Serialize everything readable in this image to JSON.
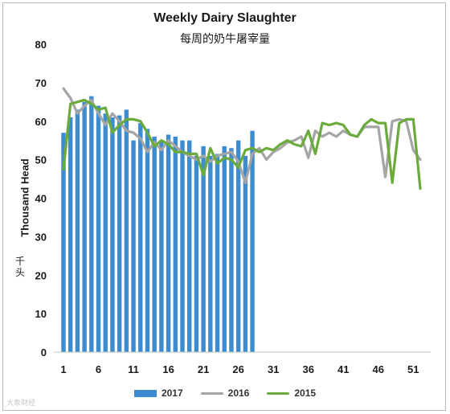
{
  "chart_data": {
    "type": "bar",
    "title": "Weekly Dairy Slaughter",
    "subtitle": "每周的奶牛屠宰量",
    "ylabel": "Thousand Head",
    "ylabel_cn": "千头",
    "xlabel": "",
    "ylim": [
      0,
      80
    ],
    "yticks": [
      "0",
      "10",
      "20",
      "30",
      "40",
      "50",
      "60",
      "70",
      "80"
    ],
    "xlim": [
      1,
      52
    ],
    "xticks": [
      "1",
      "6",
      "11",
      "16",
      "21",
      "26",
      "31",
      "36",
      "41",
      "46",
      "51"
    ],
    "grid": false,
    "legend_position": "bottom",
    "colors": {
      "2017": "#3d8ccf",
      "2016": "#a5a5a5",
      "2015": "#6aab3c"
    },
    "series": [
      {
        "name": "2017",
        "type": "bar",
        "x": [
          1,
          2,
          3,
          4,
          5,
          6,
          7,
          8,
          9,
          10,
          11,
          12,
          13,
          14,
          15,
          16,
          17,
          18,
          19,
          20,
          21,
          22,
          23,
          24,
          25,
          26,
          27,
          28
        ],
        "values": [
          57,
          61,
          63,
          65,
          66.5,
          64,
          62,
          61,
          61.5,
          63,
          55,
          59.5,
          58,
          56,
          55,
          56.5,
          56,
          55,
          55,
          51,
          53.5,
          51,
          51.5,
          53.5,
          53,
          55,
          51,
          57.5
        ]
      },
      {
        "name": "2016",
        "type": "line",
        "x": [
          1,
          2,
          3,
          4,
          5,
          6,
          7,
          8,
          9,
          10,
          11,
          12,
          13,
          14,
          15,
          16,
          17,
          18,
          19,
          20,
          21,
          22,
          23,
          24,
          25,
          26,
          27,
          28,
          29,
          30,
          31,
          32,
          33,
          34,
          35,
          36,
          37,
          38,
          39,
          40,
          41,
          42,
          43,
          44,
          45,
          46,
          47,
          48,
          49,
          50,
          51,
          52
        ],
        "values": [
          68.5,
          66,
          62,
          64,
          65.5,
          62,
          59,
          62,
          60,
          57.5,
          57,
          55.5,
          52,
          54.5,
          52.5,
          55,
          53.5,
          52,
          51,
          50,
          51,
          49.5,
          51,
          51.5,
          52,
          49.5,
          44,
          51.5,
          53,
          50,
          52,
          53,
          54.5,
          55,
          56,
          50.5,
          57.5,
          56,
          57,
          56,
          57.5,
          56.5,
          56,
          58.5,
          58.5,
          58.5,
          45.5,
          60,
          60.5,
          60,
          52.5,
          50
        ]
      },
      {
        "name": "2015",
        "type": "line",
        "x": [
          1,
          2,
          3,
          4,
          5,
          6,
          7,
          8,
          9,
          10,
          11,
          12,
          13,
          14,
          15,
          16,
          17,
          18,
          19,
          20,
          21,
          22,
          23,
          24,
          25,
          26,
          27,
          28,
          29,
          30,
          31,
          32,
          33,
          34,
          35,
          36,
          37,
          38,
          39,
          40,
          41,
          42,
          43,
          44,
          45,
          46,
          47,
          48,
          49,
          50,
          51,
          52
        ],
        "values": [
          47.5,
          64.5,
          65,
          65.5,
          64.5,
          63,
          63.5,
          57,
          59,
          60.5,
          60.5,
          60,
          57,
          53.5,
          55,
          54,
          52,
          52,
          51.5,
          51.5,
          46,
          53,
          49,
          50.5,
          50,
          48,
          52.5,
          53,
          52,
          53,
          52.5,
          54,
          55,
          54,
          53.5,
          57.5,
          51.5,
          59.5,
          59,
          59.5,
          59,
          56.5,
          56,
          59,
          60.5,
          59.5,
          59.5,
          44,
          59.5,
          60.5,
          60.5,
          42.5
        ]
      }
    ]
  },
  "watermark": "大象财经"
}
